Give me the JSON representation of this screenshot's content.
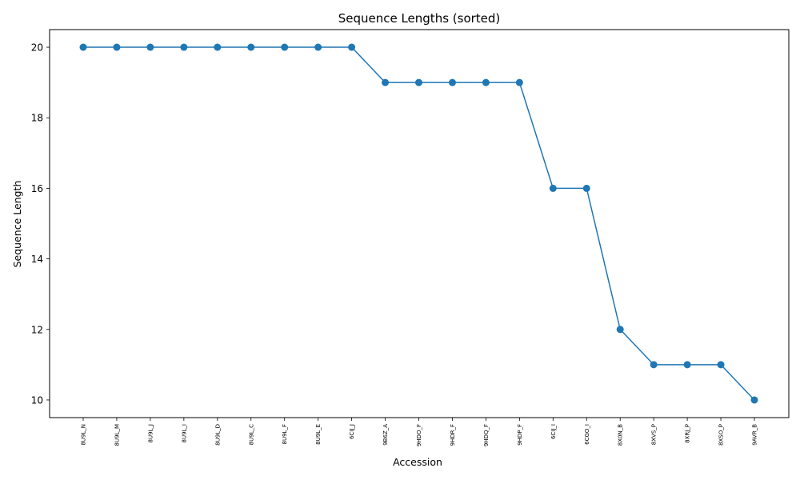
{
  "chart_data": {
    "type": "line",
    "title": "Sequence Lengths (sorted)",
    "xlabel": "Accession",
    "ylabel": "Sequence Length",
    "categories": [
      "8U9L_N",
      "8U9L_M",
      "8U9L_J",
      "8U9L_I",
      "8U9L_D",
      "8U9L_C",
      "8U9L_F",
      "8U9L_E",
      "6CIJ_J",
      "9B6Z_A",
      "9HDO_F",
      "9HDR_F",
      "9HDQ_F",
      "9HDP_F",
      "6CIJ_I",
      "6CGO_I",
      "8X0N_B",
      "8XVS_P",
      "8XRJ_P",
      "8XSO_P",
      "9AVR_B"
    ],
    "values": [
      20,
      20,
      20,
      20,
      20,
      20,
      20,
      20,
      20,
      19,
      19,
      19,
      19,
      19,
      16,
      16,
      12,
      11,
      11,
      11,
      10
    ],
    "ylim": [
      9.5,
      20.5
    ],
    "yticks": [
      10,
      12,
      14,
      16,
      18,
      20
    ],
    "grid": false,
    "legend": "none",
    "line_color": "#1f77b4",
    "marker": "circle"
  }
}
